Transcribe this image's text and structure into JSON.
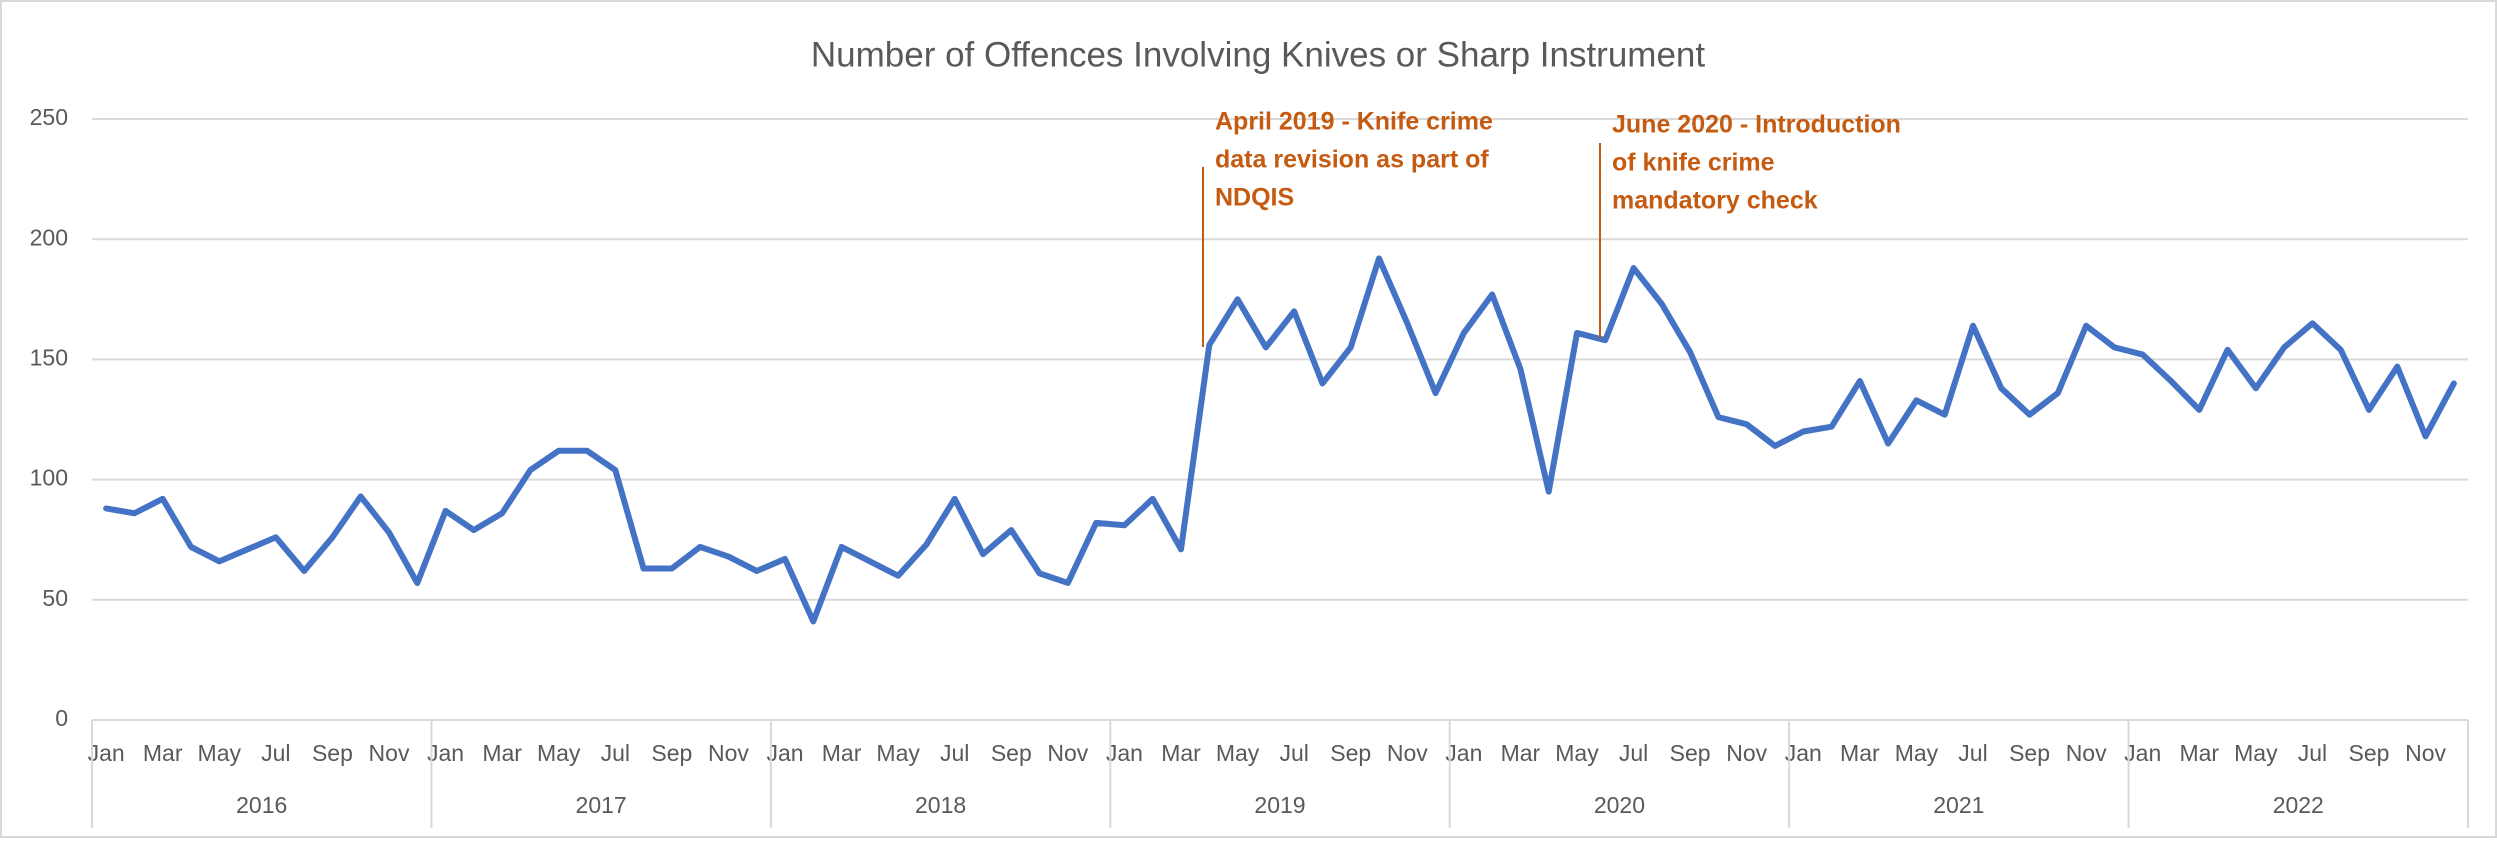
{
  "chart_data": {
    "type": "line",
    "title": "Number of Offences Involving Knives or Sharp Instrument",
    "categories": [
      "Jan",
      null,
      "Mar",
      null,
      "May",
      null,
      "Jul",
      null,
      "Sep",
      null,
      "Nov",
      null,
      "Jan",
      null,
      "Mar",
      null,
      "May",
      null,
      "Jul",
      null,
      "Sep",
      null,
      "Nov",
      null,
      "Jan",
      null,
      "Mar",
      null,
      "May",
      null,
      "Jul",
      null,
      "Sep",
      null,
      "Nov",
      null,
      "Jan",
      null,
      "Mar",
      null,
      "May",
      null,
      "Jul",
      null,
      "Sep",
      null,
      "Nov",
      null,
      "Jan",
      null,
      "Mar",
      null,
      "May",
      null,
      "Jul",
      null,
      "Sep",
      null,
      "Nov",
      null,
      "Jan",
      null,
      "Mar",
      null,
      "May",
      null,
      "Jul",
      null,
      "Sep",
      null,
      "Nov",
      null,
      "Jan",
      null,
      "Mar",
      null,
      "May",
      null,
      "Jul",
      null,
      "Sep",
      null,
      "Nov",
      null
    ],
    "groups": [
      "2016",
      "2017",
      "2018",
      "2019",
      "2020",
      "2021",
      "2022"
    ],
    "series": [
      {
        "name": "Offences",
        "color": "#4472c4",
        "values": [
          88,
          86,
          92,
          72,
          66,
          71,
          76,
          62,
          76,
          93,
          78,
          57,
          87,
          79,
          86,
          104,
          112,
          112,
          104,
          63,
          63,
          72,
          68,
          62,
          67,
          41,
          72,
          66,
          60,
          73,
          92,
          69,
          79,
          61,
          57,
          82,
          81,
          92,
          71,
          156,
          175,
          155,
          170,
          140,
          155,
          192,
          165,
          136,
          161,
          177,
          146,
          95,
          161,
          158,
          188,
          173,
          153,
          126,
          123,
          114,
          120,
          122,
          141,
          115,
          133,
          127,
          164,
          138,
          127,
          136,
          164,
          155,
          152,
          141,
          129,
          154,
          138,
          155,
          165,
          154,
          129,
          147,
          118,
          140
        ]
      }
    ],
    "ylim": [
      0,
      250
    ],
    "yticks": [
      0,
      50,
      100,
      150,
      200,
      250
    ],
    "grid": true,
    "annotations": [
      {
        "text": [
          "April 2019 - Knife crime",
          "data revision as part of",
          "NDQIS"
        ],
        "color": "#c55a11"
      },
      {
        "text": [
          "June 2020 - Introduction",
          "of knife crime",
          "mandatory check"
        ],
        "color": "#c55a11"
      }
    ]
  }
}
